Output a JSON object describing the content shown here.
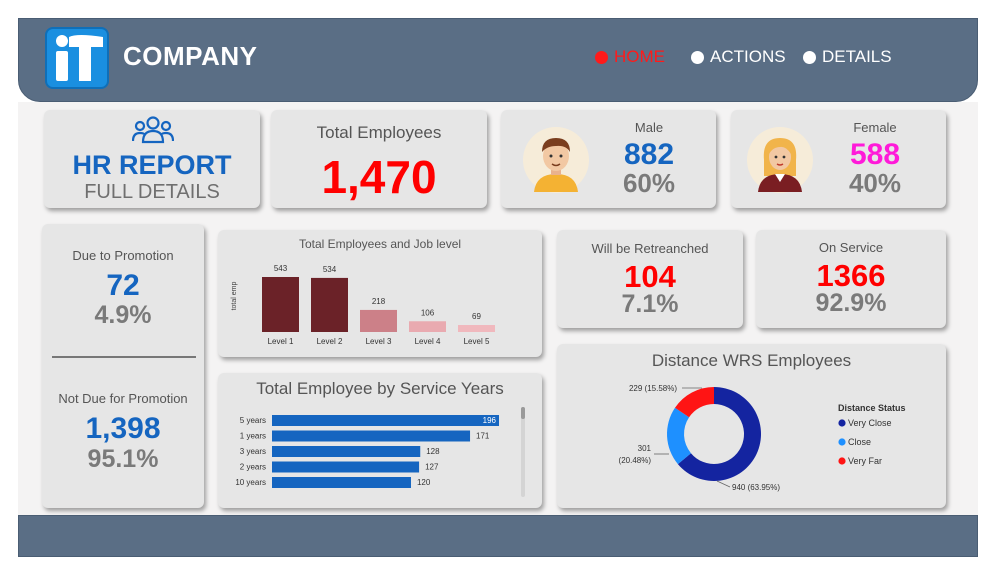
{
  "header": {
    "logo_text": "iT",
    "company": "COMPANY",
    "nav": [
      {
        "label": "HOME",
        "active": true
      },
      {
        "label": "ACTIONS",
        "active": false
      },
      {
        "label": "DETAILS",
        "active": false
      }
    ]
  },
  "report": {
    "title": "HR REPORT",
    "subtitle": "FULL DETAILS",
    "icon": "people-group-icon"
  },
  "total_employees": {
    "label": "Total Employees",
    "value": "1,470"
  },
  "male": {
    "label": "Male",
    "value": "882",
    "pct": "60%",
    "icon": "male-avatar-icon"
  },
  "female": {
    "label": "Female",
    "value": "588",
    "pct": "40%",
    "icon": "female-avatar-icon"
  },
  "promotion": {
    "due_label": "Due to Promotion",
    "due_value": "72",
    "due_pct": "4.9%",
    "not_due_label": "Not Due for Promotion",
    "not_due_value": "1,398",
    "not_due_pct": "95.1%"
  },
  "retrenched": {
    "label": "Will be Retreanched",
    "value": "104",
    "pct": "7.1%"
  },
  "on_service": {
    "label": "On Service",
    "value": "1366",
    "pct": "92.9%"
  },
  "colors": {
    "accent_blue": "#1565c0",
    "red": "#ff0000",
    "pink": "#ff1ad9",
    "header": "#5a6e85"
  },
  "chart_data": [
    {
      "type": "bar",
      "title": "Total Employees and Job level",
      "ylabel": "total emp",
      "categories": [
        "Level 1",
        "Level 2",
        "Level 3",
        "Level 4",
        "Level 5"
      ],
      "values": [
        543,
        534,
        218,
        106,
        69
      ],
      "colors": [
        "#6b2228",
        "#6b2228",
        "#cc8088",
        "#e9aab0",
        "#f0b8bd"
      ],
      "ylim": [
        0,
        543
      ]
    },
    {
      "type": "bar",
      "orientation": "horizontal",
      "title": "Total Employee by Service Years",
      "categories": [
        "5 years",
        "1 years",
        "3 years",
        "2 years",
        "10 years"
      ],
      "values": [
        196,
        171,
        128,
        127,
        120
      ],
      "color": "#1565c0",
      "xlim": [
        0,
        196
      ]
    },
    {
      "type": "pie",
      "title": "Distance WRS Employees",
      "legend_title": "Distance Status",
      "legend_position": "right",
      "series": [
        {
          "name": "Very Close",
          "value": 940,
          "label": "940 (63.95%)",
          "color": "#1424a0"
        },
        {
          "name": "Close",
          "value": 301,
          "label_top": "301",
          "label_bottom": "(20.48%)",
          "color": "#1e90ff"
        },
        {
          "name": "Very Far",
          "value": 229,
          "label": "229 (15.58%)",
          "color": "#ff1414"
        }
      ]
    }
  ]
}
